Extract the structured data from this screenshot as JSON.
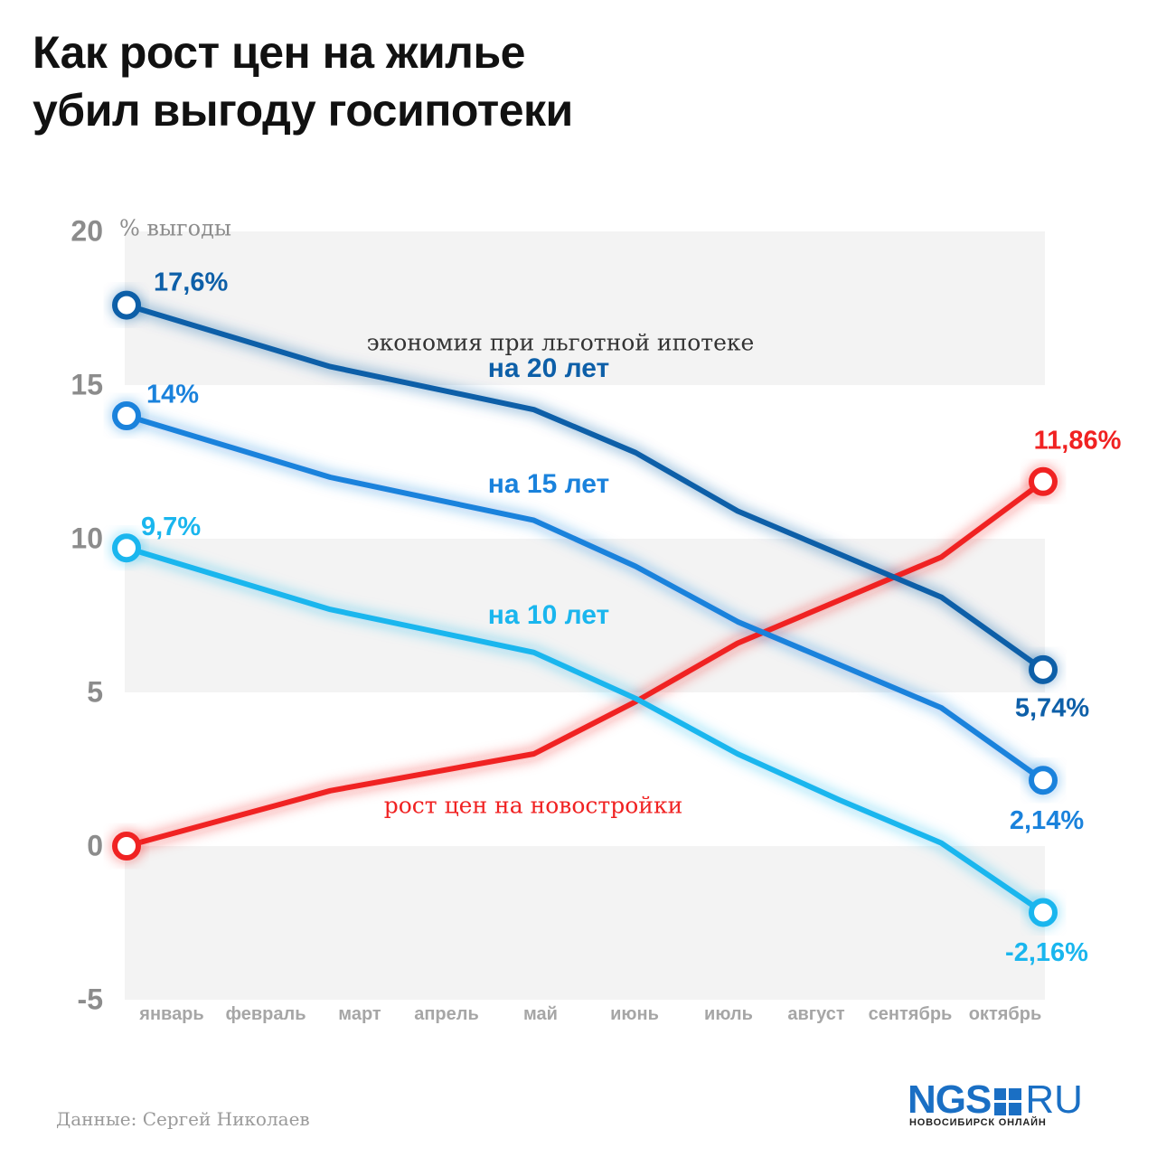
{
  "title_lines": [
    "Как рост цен на жилье",
    "убил выгоду госипотеки"
  ],
  "source": "Данные: Сергей Николаев",
  "logo": {
    "main": "NGS",
    "suffix": "RU",
    "sub": "НОВОСИБИРСК ОНЛАЙН"
  },
  "colors": {
    "y20": "#0d5fa8",
    "y15": "#1a82dc",
    "y10": "#1ab6ee",
    "price": "#f02222",
    "axis_text": "#8c8c8c",
    "band": "#f3f3f3"
  },
  "chart_data": {
    "type": "line",
    "title": "Как рост цен на жилье убил выгоду госипотеки",
    "ylabel": "% выгоды",
    "xlabel": "",
    "ylim": [
      -5,
      20
    ],
    "yticks": [
      20,
      15,
      10,
      5,
      0,
      -5
    ],
    "ytick_labels": [
      "20",
      "15",
      "10",
      "5",
      "0",
      "-5"
    ],
    "grid": "alternating horizontal bands",
    "categories": [
      "январь",
      "февраль",
      "март",
      "апрель",
      "май",
      "июнь",
      "июль",
      "август",
      "сентябрь",
      "октябрь"
    ],
    "annotation": "экономия при льготной ипотеке",
    "series": [
      {
        "key": "y20",
        "name": "на 20 лет",
        "values": [
          17.6,
          16.6,
          15.6,
          14.9,
          14.2,
          12.8,
          10.9,
          9.5,
          8.1,
          5.74
        ],
        "start_label": "17,6%",
        "end_label": "5,74%"
      },
      {
        "key": "y15",
        "name": "на 15 лет",
        "values": [
          14.0,
          13.0,
          12.0,
          11.3,
          10.6,
          9.1,
          7.3,
          5.9,
          4.5,
          2.14
        ],
        "start_label": "14%",
        "end_label": "2,14%"
      },
      {
        "key": "y10",
        "name": "на 10 лет",
        "values": [
          9.7,
          8.7,
          7.7,
          7.0,
          6.3,
          4.8,
          3.0,
          1.5,
          0.1,
          -2.16
        ],
        "start_label": "9,7%",
        "end_label": "-2,16%"
      },
      {
        "key": "price",
        "name": "рост цен на новостройки",
        "values": [
          0,
          0.9,
          1.8,
          2.4,
          3.0,
          4.7,
          6.6,
          8.0,
          9.4,
          11.86
        ],
        "start_label": "",
        "end_label": "11,86%"
      }
    ]
  }
}
